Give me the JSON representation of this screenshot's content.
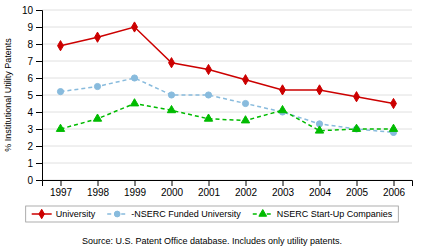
{
  "chart_data": {
    "type": "line",
    "ylabel": "% Institutional Utility Patents",
    "annotations": [
      "Source: U.S. Patent Office database. Includes only utility patents."
    ],
    "x": [
      1997,
      1998,
      1999,
      2000,
      2001,
      2002,
      2003,
      2004,
      2005,
      2006
    ],
    "xlim": [
      1996.5,
      2006.5
    ],
    "xticks": [
      1997,
      1998,
      1999,
      2000,
      2001,
      2002,
      2003,
      2004,
      2005,
      2006
    ],
    "ylim": [
      0,
      10
    ],
    "yticks": [
      0,
      1,
      2,
      3,
      4,
      5,
      6,
      7,
      8,
      9,
      10
    ],
    "grid": true,
    "legend": "bottom",
    "series": [
      {
        "name": "University",
        "color": "#cc0000",
        "marker": "diamond",
        "line_style": "solid",
        "values": [
          7.9,
          8.4,
          9.0,
          6.9,
          6.5,
          5.9,
          5.3,
          5.3,
          4.9,
          4.5
        ]
      },
      {
        "name": "-NSERC Funded University",
        "color": "#88bbdd",
        "marker": "circle",
        "line_style": "dashed",
        "values": [
          5.2,
          5.5,
          6.0,
          5.0,
          5.0,
          4.5,
          4.0,
          3.3,
          3.0,
          2.8
        ]
      },
      {
        "name": "NSERC Start-Up Companies",
        "color": "#00bb00",
        "marker": "triangle",
        "line_style": "dashed",
        "values": [
          3.0,
          3.6,
          4.5,
          4.1,
          3.6,
          3.5,
          4.1,
          2.9,
          3.0,
          3.0
        ]
      }
    ]
  }
}
